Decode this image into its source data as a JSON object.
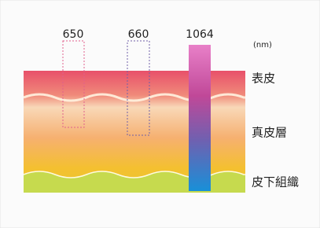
{
  "labels": {
    "wavelengths": [
      "650",
      "660",
      "1064"
    ],
    "unit": "(nm)",
    "layers": [
      "表皮",
      "真皮層",
      "皮下組織"
    ]
  }
}
